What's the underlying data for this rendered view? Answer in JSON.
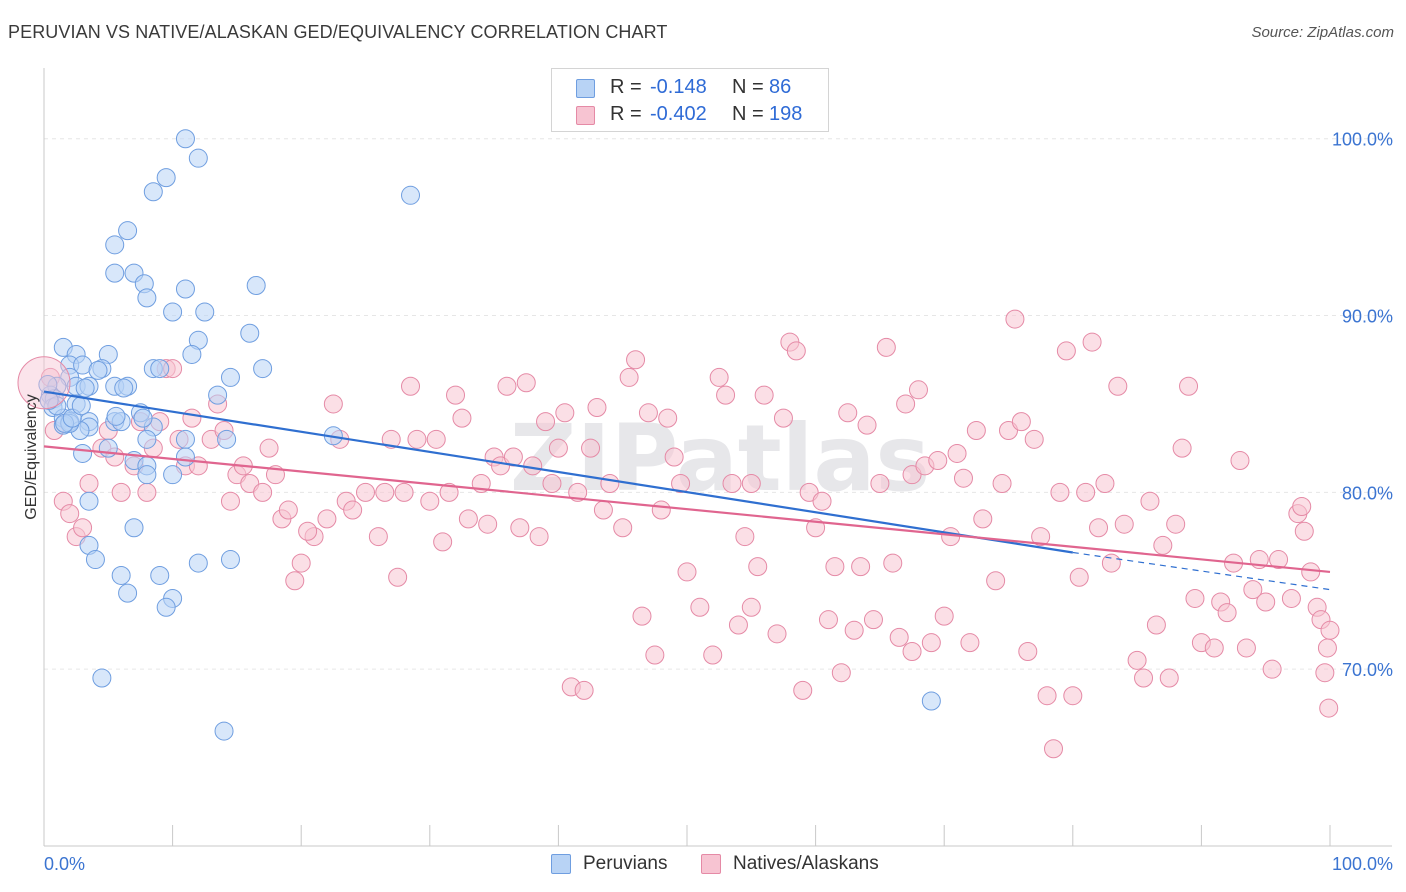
{
  "title": "PERUVIAN VS NATIVE/ALASKAN GED/EQUIVALENCY CORRELATION CHART",
  "source": "Source: ZipAtlas.com",
  "watermark": "ZIPatlas",
  "stats": [
    {
      "r_label": "R =",
      "r_value": "-0.148",
      "n_label": "N =",
      "n_value": "86",
      "fill": "#b8d3f5",
      "stroke": "#6f9ee0"
    },
    {
      "r_label": "R =",
      "r_value": "-0.402",
      "n_label": "N =",
      "n_value": "198",
      "fill": "#f7c4d2",
      "stroke": "#e58aa6"
    }
  ],
  "legend": [
    {
      "label": "Peruvians",
      "fill": "#b8d3f5",
      "stroke": "#6f9ee0"
    },
    {
      "label": "Natives/Alaskans",
      "fill": "#f7c4d2",
      "stroke": "#e58aa6"
    }
  ],
  "chart_data": {
    "type": "scatter",
    "ylabel": "GED/Equivalency",
    "xlabel": "",
    "x_tick_labels": [
      "0.0%",
      "100.0%"
    ],
    "y_tick_labels": [
      "100.0%",
      "90.0%",
      "80.0%",
      "70.0%"
    ],
    "y_ticks": [
      100,
      90,
      80,
      70
    ],
    "xlim": [
      0,
      100
    ],
    "ylim": [
      60,
      104
    ],
    "grid": true,
    "series": [
      {
        "name": "Peruvians",
        "color": "#6f9ee0",
        "fill": "#b8d3f5",
        "line_color": "#2f6fd0",
        "trend": {
          "x0": 0,
          "y0": 85.7,
          "x1": 80,
          "y1": 76.6,
          "dash_to_x": 100,
          "dash_to_y": 74.5
        },
        "points": [
          [
            11,
            100
          ],
          [
            12,
            98.9
          ],
          [
            9.5,
            97.8
          ],
          [
            8.5,
            97
          ],
          [
            28.5,
            96.8
          ],
          [
            6.5,
            94.8
          ],
          [
            5.5,
            94
          ],
          [
            7,
            92.4
          ],
          [
            5.5,
            92.4
          ],
          [
            7.8,
            91.8
          ],
          [
            11,
            91.5
          ],
          [
            16.5,
            91.7
          ],
          [
            8,
            91
          ],
          [
            10,
            90.2
          ],
          [
            12.5,
            90.2
          ],
          [
            16,
            89
          ],
          [
            12,
            88.6
          ],
          [
            1.5,
            88.2
          ],
          [
            2.5,
            87.8
          ],
          [
            5,
            87.8
          ],
          [
            11.5,
            87.8
          ],
          [
            2,
            87.2
          ],
          [
            3,
            87.2
          ],
          [
            4.5,
            87
          ],
          [
            8.5,
            87
          ],
          [
            9,
            87
          ],
          [
            17,
            87
          ],
          [
            2,
            86.5
          ],
          [
            14.5,
            86.5
          ],
          [
            1,
            86
          ],
          [
            2.5,
            86
          ],
          [
            3.5,
            86
          ],
          [
            5.5,
            86
          ],
          [
            6.5,
            86
          ],
          [
            0.5,
            85.5
          ],
          [
            0.8,
            85.3
          ],
          [
            13.5,
            85.5
          ],
          [
            0.7,
            84.8
          ],
          [
            2.5,
            85
          ],
          [
            7.5,
            84.5
          ],
          [
            1.5,
            84.2
          ],
          [
            2,
            84
          ],
          [
            3.5,
            84
          ],
          [
            5.5,
            84
          ],
          [
            6,
            84
          ],
          [
            1.5,
            83.8
          ],
          [
            3.5,
            83.7
          ],
          [
            8.5,
            83.7
          ],
          [
            2.8,
            83.5
          ],
          [
            8,
            83
          ],
          [
            11,
            83
          ],
          [
            14.2,
            83
          ],
          [
            22.5,
            83.2
          ],
          [
            5,
            82.5
          ],
          [
            3,
            82.2
          ],
          [
            11,
            82
          ],
          [
            7,
            81.8
          ],
          [
            8,
            81.5
          ],
          [
            8,
            81
          ],
          [
            10,
            81
          ],
          [
            3.5,
            79.5
          ],
          [
            7,
            78
          ],
          [
            3.5,
            77
          ],
          [
            4,
            76.2
          ],
          [
            12,
            76
          ],
          [
            14.5,
            76.2
          ],
          [
            6,
            75.3
          ],
          [
            9,
            75.3
          ],
          [
            6.5,
            74.3
          ],
          [
            10,
            74
          ],
          [
            9.5,
            73.5
          ],
          [
            4.5,
            69.5
          ],
          [
            14,
            66.5
          ],
          [
            69,
            68.2
          ],
          [
            2,
            83.9
          ],
          [
            1,
            84.9
          ],
          [
            3.2,
            85.9
          ],
          [
            4.2,
            86.9
          ],
          [
            6.2,
            85.9
          ],
          [
            1.6,
            83.9
          ],
          [
            0.4,
            85.2
          ],
          [
            7.7,
            84.2
          ],
          [
            2.2,
            84.2
          ],
          [
            0.3,
            86.1
          ],
          [
            2.9,
            84.9
          ],
          [
            5.6,
            84.3
          ]
        ]
      },
      {
        "name": "Natives/Alaskans",
        "color": "#e58aa6",
        "fill": "#f7c4d2",
        "line_color": "#e0658f",
        "trend": {
          "x0": 0,
          "y0": 82.6,
          "x1": 100,
          "y1": 75.5
        },
        "points": [
          [
            0.5,
            86.5
          ],
          [
            0.8,
            83.5
          ],
          [
            1.5,
            79.5
          ],
          [
            2,
            78.8
          ],
          [
            2.5,
            77.5
          ],
          [
            3,
            78
          ],
          [
            3.5,
            80.5
          ],
          [
            4.5,
            82.5
          ],
          [
            5,
            83.5
          ],
          [
            5.5,
            82
          ],
          [
            6,
            80
          ],
          [
            7,
            81.5
          ],
          [
            7.5,
            84
          ],
          [
            8,
            80
          ],
          [
            8.5,
            82.5
          ],
          [
            9,
            84
          ],
          [
            9.5,
            87
          ],
          [
            10,
            87
          ],
          [
            10.5,
            83
          ],
          [
            11,
            81.5
          ],
          [
            11.5,
            84.2
          ],
          [
            12,
            81.5
          ],
          [
            13,
            83
          ],
          [
            13.5,
            85
          ],
          [
            14,
            83.5
          ],
          [
            14.5,
            79.5
          ],
          [
            15,
            81
          ],
          [
            15.5,
            81.5
          ],
          [
            16,
            80.5
          ],
          [
            17,
            80
          ],
          [
            17.5,
            82.5
          ],
          [
            18,
            81
          ],
          [
            18.5,
            78.5
          ],
          [
            19,
            79
          ],
          [
            19.5,
            75
          ],
          [
            20,
            76
          ],
          [
            21,
            77.5
          ],
          [
            22,
            78.5
          ],
          [
            22.5,
            85
          ],
          [
            23,
            83
          ],
          [
            23.5,
            79.5
          ],
          [
            24,
            79
          ],
          [
            25,
            80
          ],
          [
            26,
            77.5
          ],
          [
            26.5,
            80
          ],
          [
            27,
            83
          ],
          [
            27.5,
            75.2
          ],
          [
            28,
            80
          ],
          [
            28.5,
            86
          ],
          [
            29,
            83
          ],
          [
            30,
            79.5
          ],
          [
            30.5,
            83
          ],
          [
            31,
            77.2
          ],
          [
            31.5,
            80
          ],
          [
            32,
            85.5
          ],
          [
            32.5,
            84.2
          ],
          [
            33,
            78.5
          ],
          [
            34,
            80.5
          ],
          [
            34.5,
            78.2
          ],
          [
            35,
            82
          ],
          [
            35.5,
            81.5
          ],
          [
            36,
            86
          ],
          [
            36.5,
            82
          ],
          [
            37,
            78
          ],
          [
            38,
            81.5
          ],
          [
            38.5,
            77.5
          ],
          [
            39,
            84
          ],
          [
            39.5,
            80.5
          ],
          [
            40,
            82.5
          ],
          [
            40.5,
            84.5
          ],
          [
            41,
            69
          ],
          [
            41.5,
            80
          ],
          [
            42,
            68.8
          ],
          [
            42.5,
            82.5
          ],
          [
            43,
            84.8
          ],
          [
            43.5,
            79
          ],
          [
            44,
            80.5
          ],
          [
            45,
            78
          ],
          [
            45.5,
            86.5
          ],
          [
            46,
            87.5
          ],
          [
            46.5,
            73
          ],
          [
            47,
            84.5
          ],
          [
            47.5,
            70.8
          ],
          [
            48,
            79
          ],
          [
            48.5,
            84.2
          ],
          [
            49,
            82
          ],
          [
            49.5,
            80.5
          ],
          [
            50,
            75.5
          ],
          [
            51,
            73.5
          ],
          [
            52,
            70.8
          ],
          [
            52.5,
            86.5
          ],
          [
            53,
            85.5
          ],
          [
            53.5,
            80.5
          ],
          [
            54,
            72.5
          ],
          [
            54.5,
            77.5
          ],
          [
            55,
            73.5
          ],
          [
            55.5,
            75.8
          ],
          [
            56,
            85.5
          ],
          [
            57,
            72
          ],
          [
            57.5,
            84.2
          ],
          [
            58,
            88.5
          ],
          [
            58.5,
            88
          ],
          [
            59,
            68.8
          ],
          [
            59.5,
            80
          ],
          [
            60,
            78
          ],
          [
            60.5,
            79.5
          ],
          [
            61,
            72.8
          ],
          [
            61.5,
            75.8
          ],
          [
            62,
            69.8
          ],
          [
            62.5,
            84.5
          ],
          [
            63,
            72.2
          ],
          [
            63.5,
            75.8
          ],
          [
            64,
            83.8
          ],
          [
            64.5,
            72.8
          ],
          [
            65,
            80.5
          ],
          [
            65.5,
            88.2
          ],
          [
            66,
            76
          ],
          [
            66.5,
            71.8
          ],
          [
            67,
            85
          ],
          [
            67.5,
            81
          ],
          [
            68,
            85.8
          ],
          [
            68.5,
            81.5
          ],
          [
            69,
            71.5
          ],
          [
            69.5,
            81.8
          ],
          [
            70,
            73
          ],
          [
            70.5,
            77.5
          ],
          [
            71,
            82.2
          ],
          [
            71.5,
            80.8
          ],
          [
            72,
            71.5
          ],
          [
            72.5,
            83.5
          ],
          [
            73,
            78.5
          ],
          [
            74,
            75
          ],
          [
            74.5,
            80.5
          ],
          [
            75,
            83.5
          ],
          [
            75.5,
            89.8
          ],
          [
            76,
            84
          ],
          [
            76.5,
            71
          ],
          [
            77,
            83
          ],
          [
            77.5,
            77.5
          ],
          [
            78,
            68.5
          ],
          [
            78.5,
            65.5
          ],
          [
            79,
            80
          ],
          [
            79.5,
            88
          ],
          [
            80,
            68.5
          ],
          [
            80.5,
            75.2
          ],
          [
            81,
            80
          ],
          [
            81.5,
            88.5
          ],
          [
            82,
            78
          ],
          [
            82.5,
            80.5
          ],
          [
            83,
            76
          ],
          [
            83.5,
            86
          ],
          [
            84,
            78.2
          ],
          [
            85,
            70.5
          ],
          [
            85.5,
            69.5
          ],
          [
            86,
            79.5
          ],
          [
            86.5,
            72.5
          ],
          [
            87,
            77
          ],
          [
            87.5,
            69.5
          ],
          [
            88,
            78.2
          ],
          [
            88.5,
            82.5
          ],
          [
            89,
            86
          ],
          [
            89.5,
            74
          ],
          [
            90,
            71.5
          ],
          [
            91,
            71.2
          ],
          [
            91.5,
            73.8
          ],
          [
            92,
            73.2
          ],
          [
            92.5,
            76
          ],
          [
            93,
            81.8
          ],
          [
            93.5,
            71.2
          ],
          [
            94,
            74.5
          ],
          [
            94.5,
            76.2
          ],
          [
            95,
            73.8
          ],
          [
            95.5,
            70
          ],
          [
            96,
            76.2
          ],
          [
            97,
            74
          ],
          [
            97.5,
            78.8
          ],
          [
            97.8,
            79.2
          ],
          [
            98,
            77.8
          ],
          [
            98.5,
            75.5
          ],
          [
            99,
            73.5
          ],
          [
            99.3,
            72.8
          ],
          [
            99.6,
            69.8
          ],
          [
            99.8,
            71.2
          ],
          [
            99.9,
            67.8
          ],
          [
            100,
            72.2
          ],
          [
            20.5,
            77.8
          ],
          [
            37.5,
            86.2
          ],
          [
            55,
            80.5
          ],
          [
            67.5,
            71
          ]
        ]
      }
    ]
  }
}
